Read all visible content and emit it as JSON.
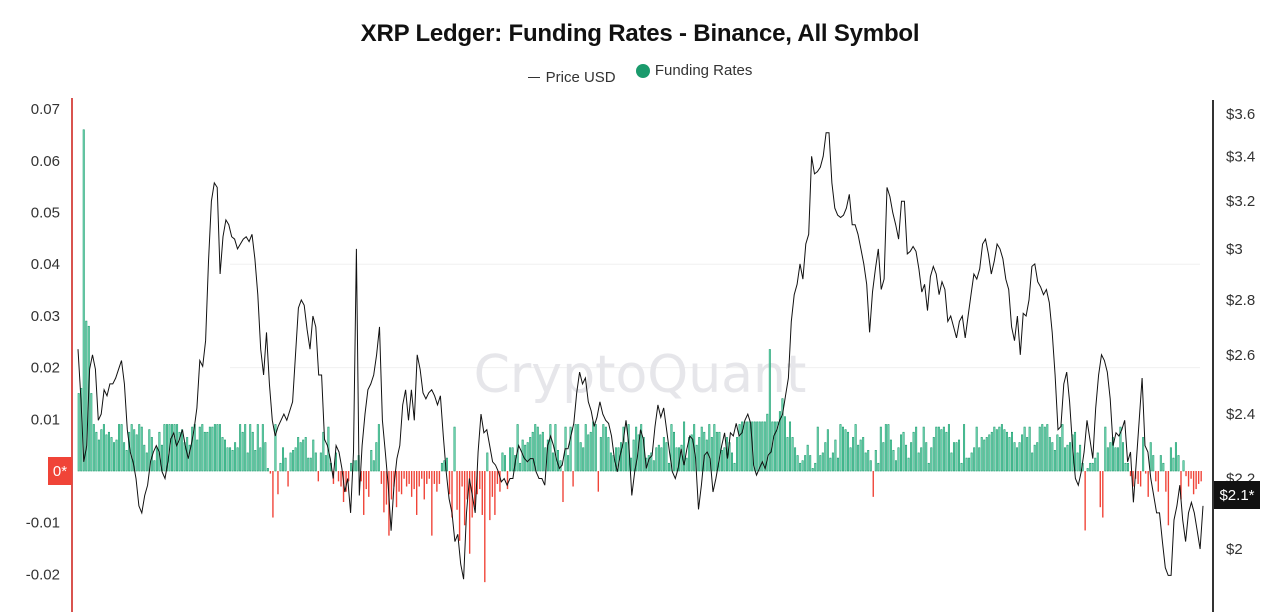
{
  "header": {
    "title": "XRP Ledger: Funding Rates - Binance, All Symbol"
  },
  "legend": [
    {
      "label": "Price USD",
      "marker": "line",
      "color": "#333333"
    },
    {
      "label": "Funding Rates",
      "marker": "dot",
      "color": "#1a9a6c"
    }
  ],
  "watermark": "CryptoQuant",
  "left_axis": {
    "ticks": [
      "0.07",
      "0.06",
      "0.05",
      "0.04",
      "0.03",
      "0.02",
      "0.01",
      "0*",
      "-0.01",
      "-0.02"
    ],
    "current_badge": "0*",
    "badge_color": "#f04438"
  },
  "right_axis": {
    "ticks": [
      "$3.6",
      "$3.4",
      "$3.2",
      "$3",
      "$2.8",
      "$2.6",
      "$2.4",
      "$2.2",
      "$2"
    ],
    "current_badge": "$2.1*",
    "badge_color": "#111111"
  },
  "colors": {
    "positive": "#1a9a6c",
    "positive_fill": "#7fe0bd",
    "negative": "#f04438",
    "price_line": "#111111",
    "left_axis_line": "#d9534f",
    "right_axis_line": "#333333",
    "grid": "#f0f0f0"
  },
  "chart_data": {
    "type": "bar+line",
    "title": "XRP Ledger: Funding Rates - Binance, All Symbol",
    "xlabel": "",
    "ylabel_left": "Funding Rates",
    "ylabel_right": "Price USD",
    "ylim_left": [
      -0.027,
      0.072
    ],
    "ylim_right": [
      1.9,
      3.65
    ],
    "right_scale": "log",
    "legend_position": "top",
    "grid": true,
    "series": [
      {
        "name": "Funding Rates",
        "type": "bar",
        "values": [
          0.015,
          0.016,
          0.066,
          0.029,
          0.028,
          0.015,
          0.009,
          0.0075,
          0.006,
          0.008,
          0.009,
          0.007,
          0.0075,
          0.0065,
          0.0055,
          0.006,
          0.009,
          0.009,
          0.0055,
          0.004,
          0.0075,
          0.009,
          0.008,
          0.007,
          0.009,
          0.0085,
          0.005,
          0.0035,
          0.008,
          0.0065,
          0.002,
          0.0045,
          0.0075,
          0.005,
          0.009,
          0.009,
          0.009,
          0.009,
          0.009,
          0.009,
          0.0075,
          0.008,
          0.0055,
          0.0065,
          0.005,
          0.0085,
          0.009,
          0.006,
          0.0085,
          0.009,
          0.0075,
          0.0075,
          0.0085,
          0.0085,
          0.009,
          0.009,
          0.009,
          0.0065,
          0.006,
          0.0045,
          0.0045,
          0.004,
          0.0055,
          0.0045,
          0.009,
          0.0075,
          0.009,
          0.0035,
          0.009,
          0.0075,
          0.004,
          0.009,
          0.0045,
          0.009,
          0.0055,
          0.0005,
          -0.0005,
          -0.009,
          0.009,
          -0.0045,
          0.0015,
          0.0045,
          0.0025,
          -0.003,
          0.0035,
          0.004,
          0.0045,
          0.0065,
          0.0055,
          0.006,
          0.0065,
          0.0025,
          0.0025,
          0.006,
          0.0035,
          -0.002,
          0.0035,
          0.0075,
          0.003,
          0.0085,
          0.0015,
          -0.0025,
          0.0035,
          -0.002,
          -0.003,
          -0.006,
          -0.004,
          -0.002,
          0.0015,
          0.002,
          0.002,
          0.003,
          -0.002,
          -0.0085,
          -0.0035,
          -0.005,
          0.004,
          0.002,
          0.0055,
          0.009,
          -0.0025,
          -0.008,
          -0.0065,
          -0.0125,
          -0.0055,
          -0.003,
          -0.007,
          -0.004,
          -0.0045,
          -0.0015,
          -0.003,
          -0.0025,
          -0.005,
          -0.0035,
          -0.0085,
          -0.003,
          -0.0015,
          -0.0055,
          -0.0025,
          -0.0015,
          -0.0125,
          -0.0025,
          -0.004,
          -0.0025,
          0.0015,
          0.002,
          0.0025,
          -0.0045,
          -0.009,
          0.0085,
          -0.0075,
          -0.0135,
          -0.003,
          -0.0105,
          -0.0055,
          -0.016,
          -0.009,
          -0.007,
          -0.0045,
          -0.0035,
          -0.0085,
          -0.0215,
          0.0035,
          -0.0095,
          -0.005,
          -0.0085,
          -0.0025,
          -0.004,
          0.0035,
          0.003,
          -0.0035,
          0.0045,
          0.0045,
          0.003,
          0.009,
          0.0015,
          0.006,
          0.005,
          0.0055,
          0.0065,
          0.0075,
          0.009,
          0.0085,
          0.007,
          0.0075,
          0.0045,
          0.006,
          0.009,
          0.0035,
          0.009,
          0.004,
          0.002,
          -0.006,
          0.0085,
          0.003,
          0.0085,
          -0.003,
          0.009,
          0.009,
          0.0055,
          0.0045,
          0.009,
          0.007,
          0.0075,
          0.0095,
          0.009,
          -0.004,
          0.0065,
          0.009,
          0.0085,
          0.0065,
          0.0035,
          0.003,
          0.0045,
          0.0045,
          0.0055,
          0.0085,
          0.0055,
          0.009,
          0.0025,
          0.006,
          0.0085,
          0.007,
          0.009,
          0.0065,
          0.0025,
          0.003,
          0.0035,
          0.002,
          0.0045,
          0.005,
          0.0045,
          0.0065,
          0.0055,
          0.0015,
          0.009,
          0.0075,
          0.0045,
          0.0045,
          0.005,
          0.0095,
          0.0025,
          0.0065,
          0.007,
          0.009,
          0.005,
          0.0065,
          0.0085,
          0.0075,
          0.006,
          0.009,
          0.0065,
          0.009,
          0.0075,
          0.0075,
          0.004,
          0.0045,
          0.0065,
          0.0055,
          0.0035,
          0.0015,
          0.0065,
          0.009,
          0.0095,
          0.0095,
          0.0095,
          0.0095,
          0.0095,
          0.0095,
          0.0095,
          0.0095,
          0.0095,
          0.0095,
          0.011,
          0.0235,
          0.0095,
          0.0095,
          0.0095,
          0.0115,
          0.014,
          0.0105,
          0.0065,
          0.0095,
          0.0065,
          0.0045,
          0.003,
          0.0015,
          0.002,
          0.003,
          0.005,
          0.003,
          0.0005,
          0.0015,
          0.0085,
          0.003,
          0.0035,
          0.0055,
          0.008,
          0.0025,
          0.0035,
          0.006,
          0.0025,
          0.009,
          0.0085,
          0.008,
          0.0075,
          0.0045,
          0.0065,
          0.009,
          0.005,
          0.006,
          0.0065,
          0.0035,
          0.004,
          0.002,
          -0.005,
          0.004,
          0.0015,
          0.0085,
          0.0055,
          0.009,
          0.009,
          0.006,
          0.004,
          0.002,
          0.0045,
          0.007,
          0.0075,
          0.005,
          0.0025,
          0.0055,
          0.0075,
          0.0085,
          0.0035,
          0.0045,
          0.0085,
          0.0055,
          0.0015,
          0.0045,
          0.0065,
          0.0085,
          0.0085,
          0.008,
          0.0085,
          0.0075,
          0.009,
          0.0035,
          0.0055,
          0.0055,
          0.006,
          0.0015,
          0.009,
          0.0025,
          0.0025,
          0.0035,
          0.0045,
          0.0085,
          0.0045,
          0.0065,
          0.006,
          0.0065,
          0.007,
          0.0075,
          0.0085,
          0.008,
          0.0085,
          0.009,
          0.008,
          0.0075,
          0.0065,
          0.0075,
          0.0055,
          0.0045,
          0.0055,
          0.007,
          0.0085,
          0.0065,
          0.0085,
          0.0035,
          0.005,
          0.0055,
          0.0085,
          0.009,
          0.0085,
          0.009,
          0.0065,
          0.0055,
          0.004,
          0.007,
          0.0065,
          0.009,
          0.0045,
          0.005,
          0.0055,
          0.007,
          0.0075,
          0.0035,
          0.005,
          0.0015,
          -0.0115,
          0.0005,
          0.0015,
          0.0015,
          0.0025,
          0.0035,
          -0.007,
          -0.009,
          0.0085,
          0.0045,
          0.0055,
          0.0065,
          0.0045,
          0.0045,
          0.0085,
          0.0055,
          0.0015,
          0.0015,
          -0.001,
          -0.003,
          -0.0015,
          -0.0025,
          -0.003,
          0.0065,
          -0.0005,
          -0.005,
          0.0055,
          0.003,
          -0.002,
          -0.004,
          0.003,
          0.0015,
          -0.004,
          -0.0105,
          0.0045,
          0.0025,
          0.0055,
          0.003,
          -0.0055,
          0.002,
          -0.001,
          -0.003,
          -0.0015,
          -0.0045,
          -0.0035,
          -0.0025,
          -0.002
        ]
      },
      {
        "name": "Price USD",
        "type": "line",
        "values": [
          2.62,
          2.45,
          2.25,
          2.3,
          2.55,
          2.6,
          2.55,
          2.38,
          2.4,
          2.48,
          2.46,
          2.5,
          2.5,
          2.52,
          2.55,
          2.58,
          2.5,
          2.35,
          2.28,
          2.25,
          2.2,
          2.12,
          2.1,
          2.15,
          2.18,
          2.25,
          2.28,
          2.3,
          2.28,
          2.22,
          2.2,
          2.25,
          2.32,
          2.34,
          2.3,
          2.32,
          2.35,
          2.3,
          2.26,
          2.3,
          2.35,
          2.42,
          2.58,
          2.56,
          2.65,
          2.95,
          3.2,
          3.28,
          3.26,
          2.9,
          3.05,
          3.12,
          3.1,
          3.05,
          3.04,
          3.0,
          3.02,
          3.04,
          3.05,
          3.03,
          3.06,
          2.96,
          2.82,
          2.62,
          2.53,
          2.68,
          2.5,
          2.38,
          2.33,
          2.36,
          2.38,
          2.4,
          2.38,
          2.41,
          2.44,
          2.6,
          2.77,
          2.8,
          2.78,
          2.69,
          2.62,
          2.74,
          2.7,
          2.53,
          2.53,
          2.32,
          2.3,
          2.26,
          2.2,
          2.3,
          2.28,
          2.23,
          2.16,
          2.2,
          2.1,
          2.28,
          3.0,
          2.15,
          2.3,
          2.4,
          2.48,
          2.5,
          2.53,
          2.6,
          2.7,
          2.38,
          2.28,
          2.18,
          2.05,
          2.18,
          2.26,
          2.3,
          2.43,
          2.48,
          2.38,
          2.48,
          2.38,
          2.6,
          2.55,
          2.47,
          2.45,
          2.47,
          2.48,
          2.46,
          2.43,
          2.46,
          2.33,
          2.22,
          2.14,
          2.1,
          2.02,
          2.04,
          1.96,
          1.92,
          2.1,
          2.2,
          2.15,
          2.1,
          2.28,
          2.4,
          2.34,
          2.35,
          2.3,
          2.25,
          2.24,
          2.22,
          2.19,
          2.2,
          2.18,
          2.2,
          2.2,
          2.26,
          2.3,
          2.28,
          2.26,
          2.25,
          2.26,
          2.26,
          2.22,
          2.2,
          2.2,
          2.18,
          2.3,
          2.33,
          2.3,
          2.26,
          2.23,
          2.24,
          2.29,
          2.29,
          2.33,
          2.37,
          2.47,
          2.54,
          2.5,
          2.52,
          2.44,
          2.41,
          2.36,
          2.39,
          2.44,
          2.4,
          2.38,
          2.37,
          2.33,
          2.26,
          2.22,
          2.27,
          2.31,
          2.38,
          2.3,
          2.15,
          2.22,
          2.27,
          2.35,
          2.32,
          2.23,
          2.26,
          2.27,
          2.36,
          2.43,
          2.39,
          2.42,
          2.35,
          2.28,
          2.22,
          2.2,
          2.23,
          2.29,
          2.24,
          2.29,
          2.33,
          2.32,
          2.26,
          2.11,
          2.18,
          2.27,
          2.28,
          2.26,
          2.16,
          2.2,
          2.25,
          2.3,
          2.34,
          2.26,
          2.34,
          2.33,
          2.37,
          2.33,
          2.34,
          2.38,
          2.4,
          2.37,
          2.24,
          2.21,
          2.23,
          2.25,
          2.23,
          2.27,
          2.28,
          2.33,
          2.35,
          2.38,
          2.4,
          2.46,
          2.52,
          2.72,
          2.82,
          2.86,
          2.94,
          2.88,
          3.02,
          3.06,
          3.4,
          3.32,
          3.33,
          3.35,
          3.4,
          3.51,
          3.51,
          3.28,
          3.17,
          3.14,
          3.13,
          3.14,
          3.17,
          3.23,
          3.1,
          3.1,
          3.06,
          3.0,
          2.94,
          2.86,
          2.68,
          2.83,
          2.92,
          3.0,
          2.84,
          2.88,
          3.26,
          3.22,
          3.15,
          3.1,
          3.04,
          3.2,
          3.2,
          2.98,
          2.99,
          3.01,
          2.99,
          2.92,
          2.83,
          2.86,
          2.76,
          2.89,
          2.93,
          2.9,
          2.82,
          2.87,
          2.84,
          2.72,
          2.74,
          2.7,
          2.66,
          2.72,
          2.74,
          2.66,
          2.74,
          2.82,
          2.9,
          2.88,
          2.92,
          3.02,
          3.04,
          2.98,
          2.9,
          2.95,
          3.02,
          3.0,
          2.96,
          2.88,
          2.84,
          2.7,
          2.65,
          2.74,
          2.6,
          2.75,
          2.74,
          2.8,
          2.93,
          2.94,
          2.87,
          2.85,
          2.82,
          2.84,
          2.79,
          2.68,
          2.53,
          2.35,
          2.36,
          2.5,
          2.54,
          2.44,
          2.3,
          2.2,
          2.18,
          2.22,
          2.28,
          2.38,
          2.32,
          2.26,
          2.42,
          2.53,
          2.6,
          2.58,
          2.54,
          2.45,
          2.3,
          2.34,
          2.33,
          2.35,
          2.38,
          2.25,
          2.28,
          2.13,
          2.25,
          2.38,
          2.52,
          2.3,
          2.28,
          2.2,
          2.15,
          2.1,
          2.1,
          2.02,
          1.95,
          1.93,
          1.93,
          2.08,
          2.12,
          2.18,
          2.08,
          2.02,
          2.1,
          2.13,
          2.1,
          2.05,
          2.0,
          2.12
        ]
      }
    ]
  }
}
